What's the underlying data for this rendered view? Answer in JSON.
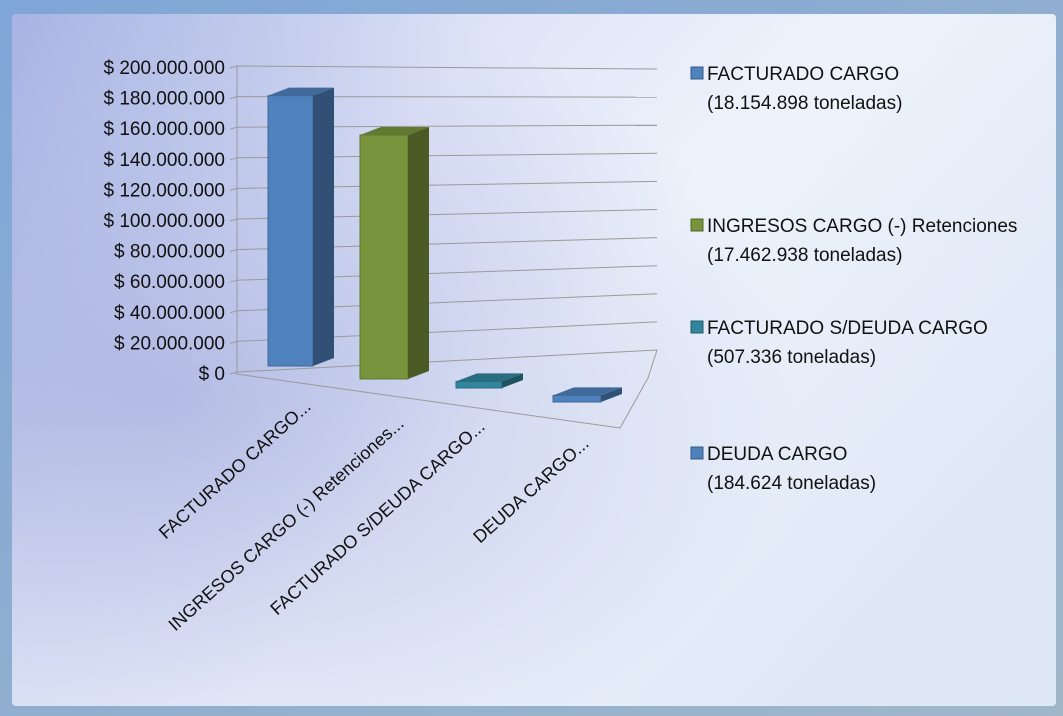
{
  "chart_data": {
    "type": "bar",
    "title": "",
    "xlabel": "",
    "ylabel": "",
    "ylim": [
      0,
      200000000
    ],
    "y_ticks": [
      "$ 0",
      "$ 20.000.000",
      "$ 40.000.000",
      "$ 60.000.000",
      "$ 80.000.000",
      "$ 100.000.000",
      "$ 120.000.000",
      "$ 140.000.000",
      "$ 160.000.000",
      "$ 180.000.000",
      "$ 200.000.000"
    ],
    "categories": [
      "FACTURADO CARGO...",
      "INGRESOS CARGO (-) Retenciones...",
      "FACTURADO S/DEUDA CARGO...",
      "DEUDA CARGO..."
    ],
    "values": [
      185000000,
      167000000,
      4500000,
      4500000
    ],
    "grid": true,
    "legend_position": "right",
    "legend": [
      {
        "line1": "FACTURADO CARGO",
        "line2": "(18.154.898 toneladas)",
        "color": "#4f81bd"
      },
      {
        "line1": "INGRESOS CARGO (-) Retenciones",
        "line2": "(17.462.938 toneladas)",
        "color": "#77933c"
      },
      {
        "line1": "FACTURADO S/DEUDA CARGO",
        "line2": "(507.336 toneladas)",
        "color": "#31859c"
      },
      {
        "line1": "DEUDA CARGO",
        "line2": "(184.624 toneladas)",
        "color": "#4f81bd"
      }
    ],
    "colors": [
      "#4f81bd",
      "#77933c",
      "#31859c",
      "#4f81bd"
    ]
  }
}
